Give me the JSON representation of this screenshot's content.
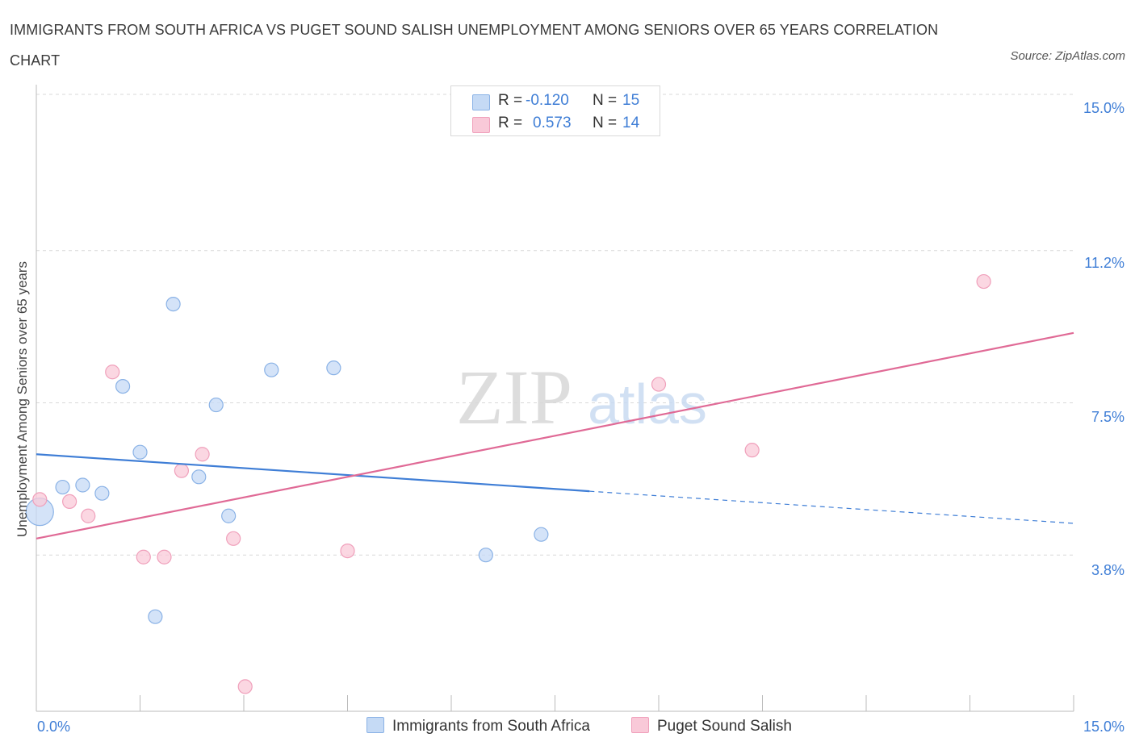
{
  "title": "IMMIGRANTS FROM SOUTH AFRICA VS PUGET SOUND SALISH UNEMPLOYMENT AMONG SENIORS OVER 65 YEARS CORRELATION CHART",
  "source": "Source: ZipAtlas.com",
  "colors": {
    "blue": "#3f7ed6",
    "blue_fill": "#c5daf5",
    "blue_stroke": "#8ab2e6",
    "pink": "#e06a96",
    "pink_fill": "#f9c9d8",
    "pink_stroke": "#f0a0bb",
    "grid": "#d9d9d9",
    "axis_label": "#3f7ed6"
  },
  "legend": {
    "rows": [
      {
        "r_label": "R =",
        "r_value": "-0.120",
        "n_label": "N =",
        "n_value": "15"
      },
      {
        "r_label": "R =",
        "r_value": "0.573",
        "n_label": "N =",
        "n_value": "14"
      }
    ]
  },
  "chart_data": {
    "type": "scatter",
    "title": "IMMIGRANTS FROM SOUTH AFRICA VS PUGET SOUND SALISH UNEMPLOYMENT AMONG SENIORS OVER 65 YEARS CORRELATION CHART",
    "xlabel": "",
    "ylabel": "Unemployment Among Seniors over 65 years",
    "xlim": [
      0,
      15
    ],
    "ylim": [
      0,
      15
    ],
    "x_tick_labels": [
      "0.0%",
      "15.0%"
    ],
    "y_ticks": [
      {
        "value": 3.8,
        "label": "3.8%"
      },
      {
        "value": 7.5,
        "label": "7.5%"
      },
      {
        "value": 11.2,
        "label": "11.2%"
      },
      {
        "value": 15.0,
        "label": "15.0%"
      }
    ],
    "watermark": {
      "zip": "ZIP",
      "atlas": "atlas"
    },
    "series": [
      {
        "name": "Immigrants from South Africa",
        "r": -0.12,
        "n": 15,
        "points": [
          {
            "x": 0.05,
            "y": 4.85,
            "big": true
          },
          {
            "x": 0.38,
            "y": 5.45
          },
          {
            "x": 0.67,
            "y": 5.5
          },
          {
            "x": 0.95,
            "y": 5.3
          },
          {
            "x": 1.25,
            "y": 7.9
          },
          {
            "x": 1.5,
            "y": 6.3
          },
          {
            "x": 1.72,
            "y": 2.3
          },
          {
            "x": 1.98,
            "y": 9.9
          },
          {
            "x": 2.35,
            "y": 5.7
          },
          {
            "x": 2.6,
            "y": 7.45
          },
          {
            "x": 2.78,
            "y": 4.75
          },
          {
            "x": 3.4,
            "y": 8.3
          },
          {
            "x": 4.3,
            "y": 8.35
          },
          {
            "x": 6.5,
            "y": 3.8
          },
          {
            "x": 7.3,
            "y": 4.3
          }
        ],
        "trend": {
          "x0": 0,
          "y0": 6.25,
          "x1": 8.0,
          "y1": 5.35,
          "dash_x1": 15,
          "dash_y1": 4.57
        }
      },
      {
        "name": "Puget Sound Salish",
        "r": 0.573,
        "n": 14,
        "points": [
          {
            "x": 0.05,
            "y": 5.15
          },
          {
            "x": 0.48,
            "y": 5.1
          },
          {
            "x": 0.75,
            "y": 4.75
          },
          {
            "x": 1.1,
            "y": 8.25
          },
          {
            "x": 1.55,
            "y": 3.75
          },
          {
            "x": 1.85,
            "y": 3.75
          },
          {
            "x": 2.1,
            "y": 5.85
          },
          {
            "x": 2.4,
            "y": 6.25
          },
          {
            "x": 2.85,
            "y": 4.2
          },
          {
            "x": 3.02,
            "y": 0.6
          },
          {
            "x": 4.5,
            "y": 3.9
          },
          {
            "x": 9.0,
            "y": 7.95
          },
          {
            "x": 10.35,
            "y": 6.35
          },
          {
            "x": 13.7,
            "y": 10.45
          }
        ],
        "trend": {
          "x0": 0,
          "y0": 4.2,
          "x1": 15,
          "y1": 9.2
        }
      }
    ]
  }
}
